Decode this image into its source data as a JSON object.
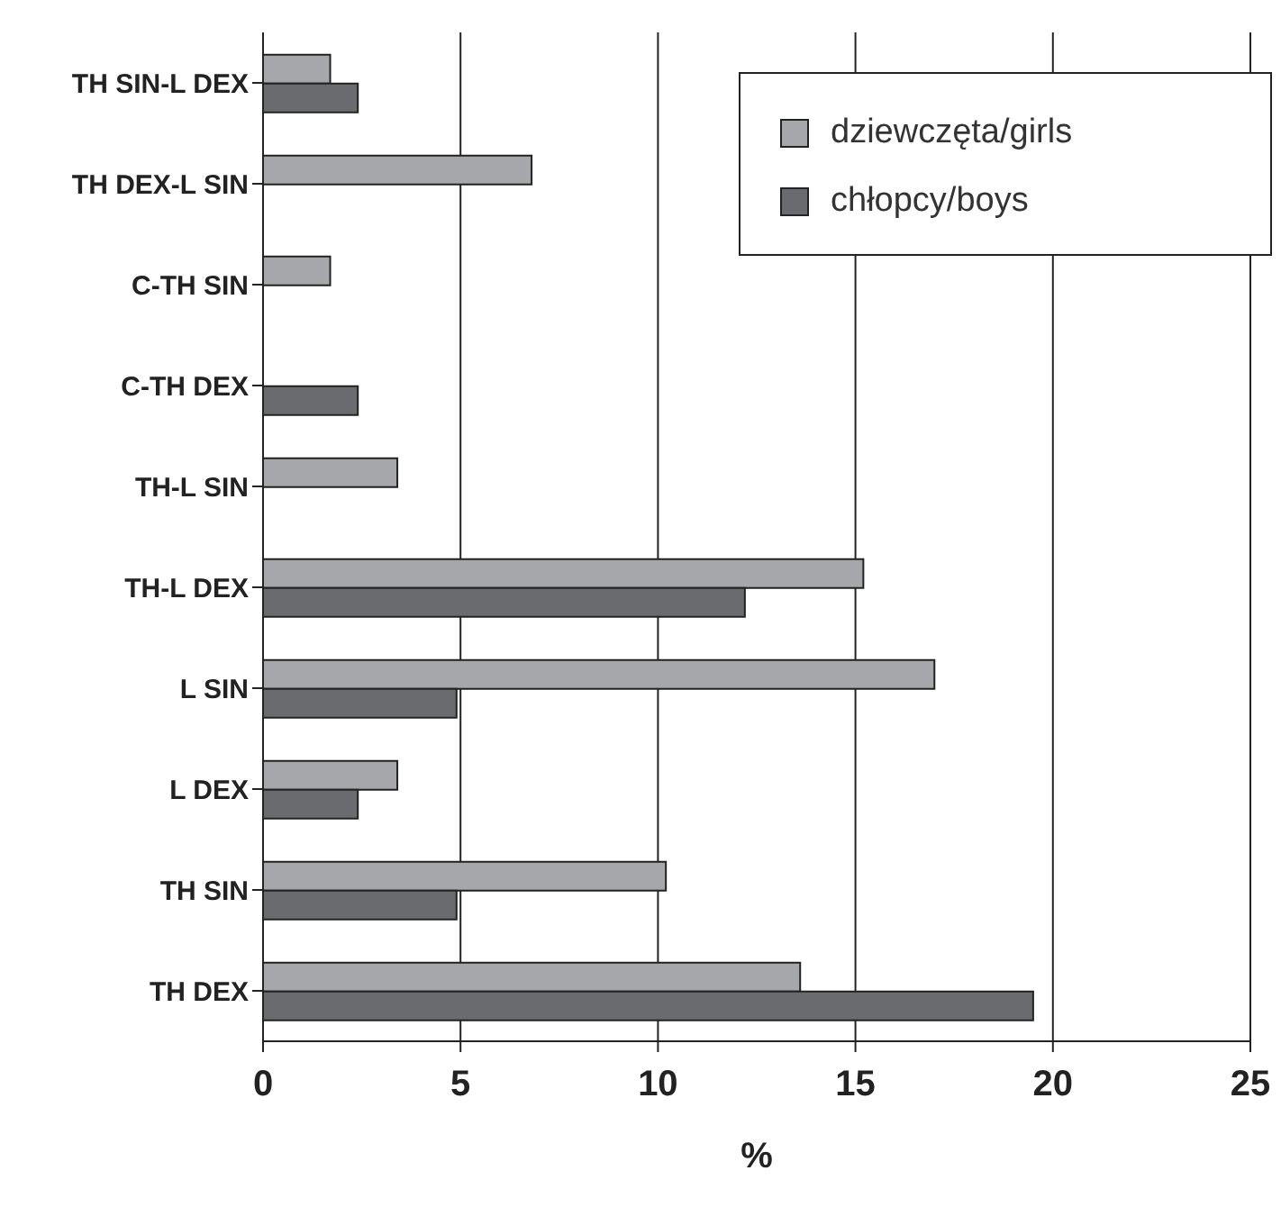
{
  "chart_data": {
    "type": "bar",
    "orientation": "horizontal",
    "xlabel": "%",
    "categories": [
      "TH SIN-L DEX",
      "TH DEX-L SIN",
      "C-TH SIN",
      "C-TH DEX",
      "TH-L SIN",
      "TH-L DEX",
      "L SIN",
      "L DEX",
      "TH SIN",
      "TH DEX"
    ],
    "series": [
      {
        "name": "dziewczęta/girls",
        "color": "#a6a7ab",
        "values": [
          1.7,
          6.8,
          1.7,
          null,
          3.4,
          15.2,
          17.0,
          3.4,
          10.2,
          13.6
        ]
      },
      {
        "name": "chłopcy/boys",
        "color": "#6a6b6f",
        "values": [
          2.4,
          null,
          null,
          2.4,
          null,
          12.2,
          4.9,
          2.4,
          4.9,
          19.5
        ]
      }
    ],
    "xlim": [
      0,
      25
    ],
    "xticks": [
      0,
      5,
      10,
      15,
      20,
      25
    ],
    "grid": "x",
    "legend": "top right"
  }
}
